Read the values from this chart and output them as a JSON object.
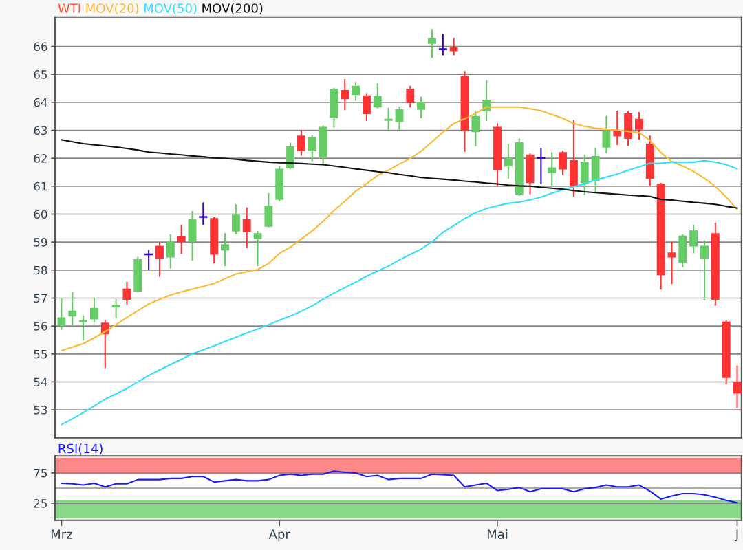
{
  "chart_data": [
    {
      "type": "candlestick",
      "categories": [
        null,
        null,
        null,
        null,
        null,
        null,
        null,
        null,
        null,
        null,
        null,
        null,
        null,
        null,
        null,
        null,
        null,
        null,
        null,
        null,
        null,
        null,
        null,
        null,
        null,
        null,
        null,
        null,
        null,
        null,
        null,
        null,
        null,
        null,
        null,
        null,
        null,
        null,
        null,
        null,
        null,
        null,
        null,
        null,
        null,
        null,
        null,
        null,
        null,
        null,
        null,
        null,
        null,
        null,
        null,
        null,
        null,
        null,
        null,
        null,
        null,
        null,
        null
      ],
      "ylim": [
        52.0,
        67.05
      ],
      "yticks": [
        53,
        54,
        55,
        56,
        57,
        58,
        59,
        60,
        61,
        62,
        63,
        64,
        65,
        66
      ],
      "grid": "y",
      "tick_labels": "y",
      "legend": "top left",
      "series": [
        {
          "name": "WTI",
          "type": "candlestick",
          "color": "#ff5533",
          "colors": [
            "#66cc66",
            "#66cc66",
            "#66cc66",
            "#66cc66",
            "#ff3333",
            "#66cc66",
            "#ff3333",
            "#66cc66",
            "#3300cc",
            "#ff3333",
            "#66cc66",
            "#ff3333",
            "#66cc66",
            "#3300cc",
            "#ff3333",
            "#66cc66",
            "#66cc66",
            "#ff3333",
            "#66cc66",
            "#66cc66",
            "#66cc66",
            "#66cc66",
            "#ff3333",
            "#66cc66",
            "#66cc66",
            "#66cc66",
            "#ff3333",
            "#66cc66",
            "#ff3333",
            "#66cc66",
            "#66cc66",
            "#66cc66",
            "#ff3333",
            "#66cc66",
            "#66cc66",
            "#3300cc",
            "#ff3333",
            "#ff3333",
            "#66cc66",
            "#66cc66",
            "#ff3333",
            "#66cc66",
            "#66cc66",
            "#ff3333",
            "#3300cc",
            "#66cc66",
            "#ff3333",
            "#ff3333",
            "#66cc66",
            "#66cc66",
            "#66cc66",
            "#ff3333",
            "#ff3333",
            "#ff3333",
            "#ff3333",
            "#ff3333",
            "#ff3333",
            "#66cc66",
            "#66cc66",
            "#66cc66",
            "#ff3333",
            "#ff3333",
            "#ff3333"
          ],
          "ohlc": [
            [
              56.02,
              56.99,
              55.87,
              56.31
            ],
            [
              56.34,
              57.21,
              56.02,
              56.55
            ],
            [
              56.14,
              56.38,
              55.49,
              56.21
            ],
            [
              56.24,
              56.99,
              56.14,
              56.65
            ],
            [
              56.12,
              56.21,
              54.5,
              55.7
            ],
            [
              56.67,
              56.96,
              56.28,
              56.76
            ],
            [
              57.34,
              57.58,
              56.76,
              56.94
            ],
            [
              57.23,
              58.48,
              57.21,
              58.39
            ],
            [
              58.56,
              58.72,
              58.0,
              58.56
            ],
            [
              58.87,
              59.01,
              57.76,
              58.41
            ],
            [
              58.45,
              59.28,
              58.05,
              59.01
            ],
            [
              59.21,
              59.61,
              58.58,
              59.0
            ],
            [
              59.0,
              60.11,
              58.34,
              59.82
            ],
            [
              59.9,
              60.42,
              59.62,
              59.9
            ],
            [
              59.86,
              59.9,
              58.24,
              58.55
            ],
            [
              58.7,
              59.32,
              58.14,
              58.92
            ],
            [
              59.38,
              60.35,
              59.28,
              59.98
            ],
            [
              59.82,
              60.24,
              58.79,
              59.35
            ],
            [
              59.1,
              59.4,
              58.14,
              59.32
            ],
            [
              59.55,
              60.75,
              59.53,
              60.3
            ],
            [
              60.51,
              61.72,
              60.46,
              61.62
            ],
            [
              61.64,
              62.56,
              61.61,
              62.42
            ],
            [
              62.81,
              63.0,
              62.09,
              62.25
            ],
            [
              62.25,
              62.83,
              61.89,
              62.76
            ],
            [
              62.04,
              63.17,
              61.79,
              63.12
            ],
            [
              63.43,
              64.52,
              63.1,
              64.49
            ],
            [
              64.44,
              64.83,
              63.72,
              64.11
            ],
            [
              64.26,
              64.73,
              64.06,
              64.59
            ],
            [
              64.25,
              64.33,
              63.33,
              63.58
            ],
            [
              63.82,
              64.69,
              63.78,
              64.23
            ],
            [
              63.34,
              63.8,
              63.02,
              63.41
            ],
            [
              63.29,
              63.85,
              63.02,
              63.75
            ],
            [
              64.49,
              64.59,
              63.82,
              63.97
            ],
            [
              63.73,
              64.2,
              63.43,
              64.01
            ],
            [
              66.09,
              66.62,
              65.58,
              66.31
            ],
            [
              65.9,
              66.45,
              65.68,
              65.9
            ],
            [
              65.97,
              66.31,
              65.68,
              65.83
            ],
            [
              64.94,
              65.12,
              62.23,
              62.98
            ],
            [
              62.93,
              63.68,
              62.43,
              63.51
            ],
            [
              63.68,
              64.79,
              63.33,
              64.09
            ],
            [
              63.12,
              63.25,
              60.98,
              61.56
            ],
            [
              61.7,
              62.52,
              61.26,
              62.03
            ],
            [
              60.68,
              62.71,
              60.65,
              62.57
            ],
            [
              62.13,
              62.17,
              60.71,
              61.11
            ],
            [
              62.01,
              62.37,
              61.07,
              62.01
            ],
            [
              61.46,
              62.22,
              60.98,
              61.67
            ],
            [
              62.22,
              62.27,
              61.4,
              61.6
            ],
            [
              61.93,
              63.36,
              60.61,
              60.98
            ],
            [
              61.11,
              62.13,
              60.68,
              61.88
            ],
            [
              61.17,
              62.37,
              60.8,
              62.08
            ],
            [
              62.38,
              63.51,
              62.18,
              63.0
            ],
            [
              62.98,
              63.7,
              62.47,
              62.78
            ],
            [
              63.6,
              63.7,
              62.44,
              62.69
            ],
            [
              63.41,
              63.65,
              62.67,
              63.02
            ],
            [
              62.52,
              62.81,
              61.0,
              61.26
            ],
            [
              61.09,
              61.12,
              57.3,
              57.81
            ],
            [
              58.63,
              59.01,
              57.5,
              58.45
            ],
            [
              58.26,
              59.28,
              58.1,
              59.23
            ],
            [
              58.84,
              59.61,
              58.6,
              59.42
            ],
            [
              58.41,
              59.06,
              56.92,
              58.87
            ],
            [
              59.32,
              59.69,
              56.72,
              56.94
            ],
            [
              56.16,
              56.21,
              53.92,
              54.14
            ],
            [
              53.99,
              54.59,
              53.07,
              53.58
            ]
          ]
        },
        {
          "name": "MOV(20)",
          "type": "line",
          "color": "#ffb833",
          "values": [
            55.12,
            55.25,
            55.37,
            55.58,
            55.8,
            56.05,
            56.31,
            56.55,
            56.79,
            56.95,
            57.11,
            57.22,
            57.32,
            57.42,
            57.52,
            57.69,
            57.86,
            57.94,
            58.02,
            58.24,
            58.6,
            58.82,
            59.11,
            59.4,
            59.74,
            60.13,
            60.46,
            60.82,
            61.09,
            61.38,
            61.57,
            61.79,
            61.99,
            62.25,
            62.59,
            62.93,
            63.24,
            63.41,
            63.6,
            63.83,
            63.83,
            63.83,
            63.83,
            63.77,
            63.7,
            63.56,
            63.43,
            63.24,
            63.14,
            63.07,
            63.04,
            63.0,
            62.96,
            62.91,
            62.64,
            62.2,
            61.88,
            61.72,
            61.53,
            61.28,
            60.99,
            60.61,
            60.17
          ]
        },
        {
          "name": "MOV(50)",
          "type": "line",
          "color": "#33ddff",
          "values": [
            52.47,
            52.68,
            52.9,
            53.14,
            53.38,
            53.57,
            53.77,
            54.0,
            54.23,
            54.43,
            54.62,
            54.81,
            55.0,
            55.15,
            55.29,
            55.45,
            55.6,
            55.75,
            55.89,
            56.05,
            56.21,
            56.36,
            56.53,
            56.72,
            56.96,
            57.18,
            57.37,
            57.57,
            57.78,
            57.97,
            58.14,
            58.36,
            58.56,
            58.75,
            59.01,
            59.35,
            59.59,
            59.84,
            60.05,
            60.2,
            60.3,
            60.39,
            60.43,
            60.51,
            60.61,
            60.75,
            60.87,
            60.98,
            61.09,
            61.22,
            61.33,
            61.43,
            61.57,
            61.69,
            61.82,
            61.82,
            61.86,
            61.86,
            61.86,
            61.91,
            61.86,
            61.77,
            61.62
          ]
        },
        {
          "name": "MOV(200)",
          "type": "line",
          "color": "#111111",
          "values": [
            62.66,
            62.59,
            62.52,
            62.48,
            62.44,
            62.4,
            62.35,
            62.29,
            62.22,
            62.19,
            62.15,
            62.12,
            62.08,
            62.05,
            62.01,
            61.99,
            61.96,
            61.92,
            61.89,
            61.86,
            61.84,
            61.83,
            61.81,
            61.79,
            61.77,
            61.72,
            61.67,
            61.62,
            61.57,
            61.52,
            61.48,
            61.42,
            61.37,
            61.31,
            61.28,
            61.25,
            61.22,
            61.18,
            61.15,
            61.11,
            61.08,
            61.04,
            61.01,
            61.0,
            60.96,
            60.93,
            60.89,
            60.84,
            60.8,
            60.77,
            60.74,
            60.71,
            60.68,
            60.66,
            60.63,
            60.53,
            60.5,
            60.46,
            60.42,
            60.39,
            60.35,
            60.28,
            60.22
          ]
        }
      ]
    },
    {
      "type": "line",
      "categories": [
        "Mrz",
        null,
        null,
        null,
        null,
        null,
        null,
        null,
        null,
        null,
        null,
        null,
        null,
        null,
        null,
        null,
        null,
        null,
        null,
        null,
        "Apr",
        null,
        null,
        null,
        null,
        null,
        null,
        null,
        null,
        null,
        null,
        null,
        null,
        null,
        null,
        null,
        null,
        null,
        null,
        null,
        "Mai",
        null,
        null,
        null,
        null,
        null,
        null,
        null,
        null,
        null,
        null,
        null,
        null,
        null,
        null,
        null,
        null,
        null,
        null,
        null,
        null,
        null,
        "J"
      ],
      "ylim": [
        -3,
        103
      ],
      "yticks": [
        25,
        75
      ],
      "grid": "y",
      "legend": "top left",
      "bands": [
        {
          "axis": "y",
          "from": 73,
          "to": 100,
          "color": "#ff8888"
        },
        {
          "axis": "y",
          "from": 0,
          "to": 30,
          "color": "#88d888"
        }
      ],
      "ref_lines": [
        {
          "axis": "y",
          "value": 50,
          "color": "#aaaaaa"
        }
      ],
      "series": [
        {
          "name": "RSI(14)",
          "color": "#1a1aff",
          "values": [
            58,
            57,
            55,
            58,
            52,
            57,
            57,
            64,
            64,
            64,
            66,
            66,
            69,
            69,
            60,
            62,
            64,
            62,
            62,
            64,
            71,
            73,
            71,
            73,
            73,
            78,
            76,
            75,
            69,
            71,
            64,
            66,
            66,
            66,
            73,
            72,
            71,
            52,
            55,
            58,
            46,
            48,
            51,
            44,
            49,
            49,
            49,
            44,
            49,
            51,
            55,
            52,
            52,
            55,
            45,
            32,
            37,
            41,
            41,
            39,
            35,
            30,
            26
          ]
        }
      ]
    }
  ]
}
